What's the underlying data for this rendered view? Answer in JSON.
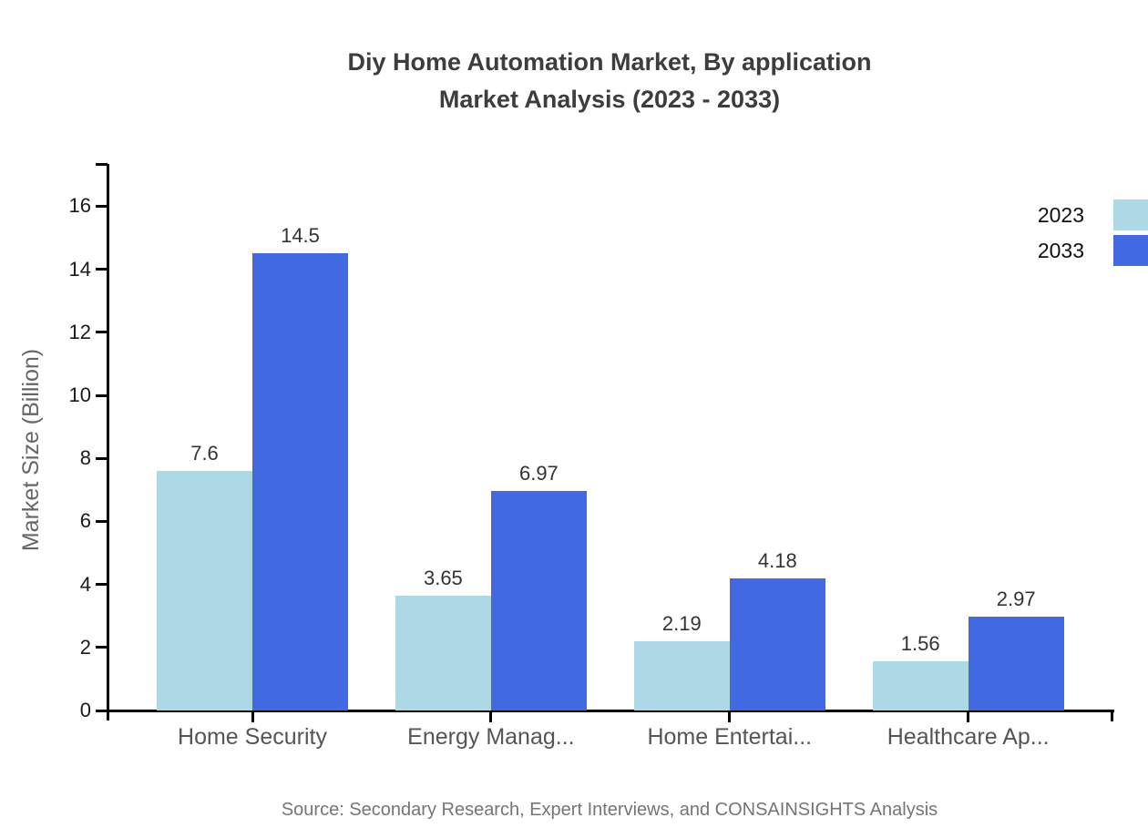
{
  "title": {
    "line1": "Diy Home Automation Market, By application",
    "line2": "Market Analysis (2023 - 2033)"
  },
  "y_axis_title": "Market Size (Billion)",
  "source": "Source: Secondary Research, Expert Interviews, and CONSAINSIGHTS Analysis",
  "colors": {
    "series_2023": "#add8e6",
    "series_2033": "#4169e1",
    "axis": "#000000",
    "title_text": "#3d3d3d",
    "category_text": "#555555",
    "source_text": "#757575"
  },
  "legend": {
    "position": "top-right",
    "items": [
      {
        "label": "2023",
        "color": "#add8e6"
      },
      {
        "label": "2033",
        "color": "#4169e1"
      }
    ]
  },
  "chart_data": {
    "type": "bar",
    "title": "Diy Home Automation Market, By application Market Analysis (2023 - 2033)",
    "categories": [
      "Home Security",
      "Energy Manag...",
      "Home Entertai...",
      "Healthcare Ap..."
    ],
    "series": [
      {
        "name": "2023",
        "color": "#add8e6",
        "values": [
          7.6,
          3.65,
          2.19,
          1.56
        ]
      },
      {
        "name": "2033",
        "color": "#4169e1",
        "values": [
          14.5,
          6.97,
          4.18,
          2.97
        ]
      }
    ],
    "value_labels": [
      "7.6",
      "14.5",
      "3.65",
      "6.97",
      "2.19",
      "4.18",
      "1.56",
      "2.97"
    ],
    "xlabel": "",
    "ylabel": "Market Size (Billion)",
    "ylim": [
      0,
      17.3
    ],
    "yticks": [
      0,
      2,
      4,
      6,
      8,
      10,
      12,
      14,
      16
    ],
    "grid": false,
    "legend_position": "top-right"
  }
}
